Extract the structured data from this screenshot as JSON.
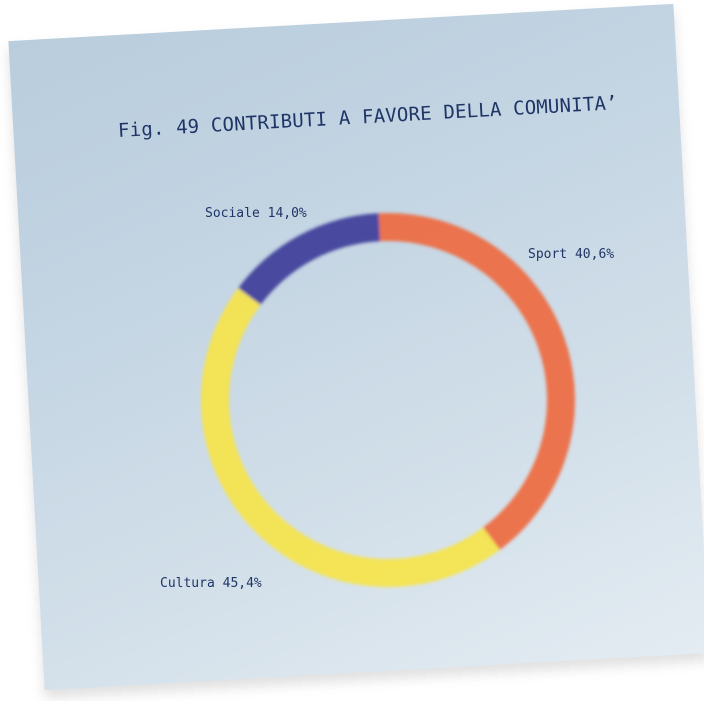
{
  "chart_data": {
    "type": "pie",
    "style": "donut-ring",
    "title": "Fig. 49 CONTRIBUTI A FAVORE DELLA COMUNITA’",
    "slices": [
      {
        "name": "Sport",
        "label": "Sport 40,6%",
        "value": 40.6,
        "color": "#ee6a3f"
      },
      {
        "name": "Cultura",
        "label": "Cultura 45,4%",
        "value": 45.4,
        "color": "#f6e44a"
      },
      {
        "name": "Sociale",
        "label": "Sociale 14,0%",
        "value": 14.0,
        "color": "#3d3c99"
      }
    ],
    "legend": "none"
  }
}
